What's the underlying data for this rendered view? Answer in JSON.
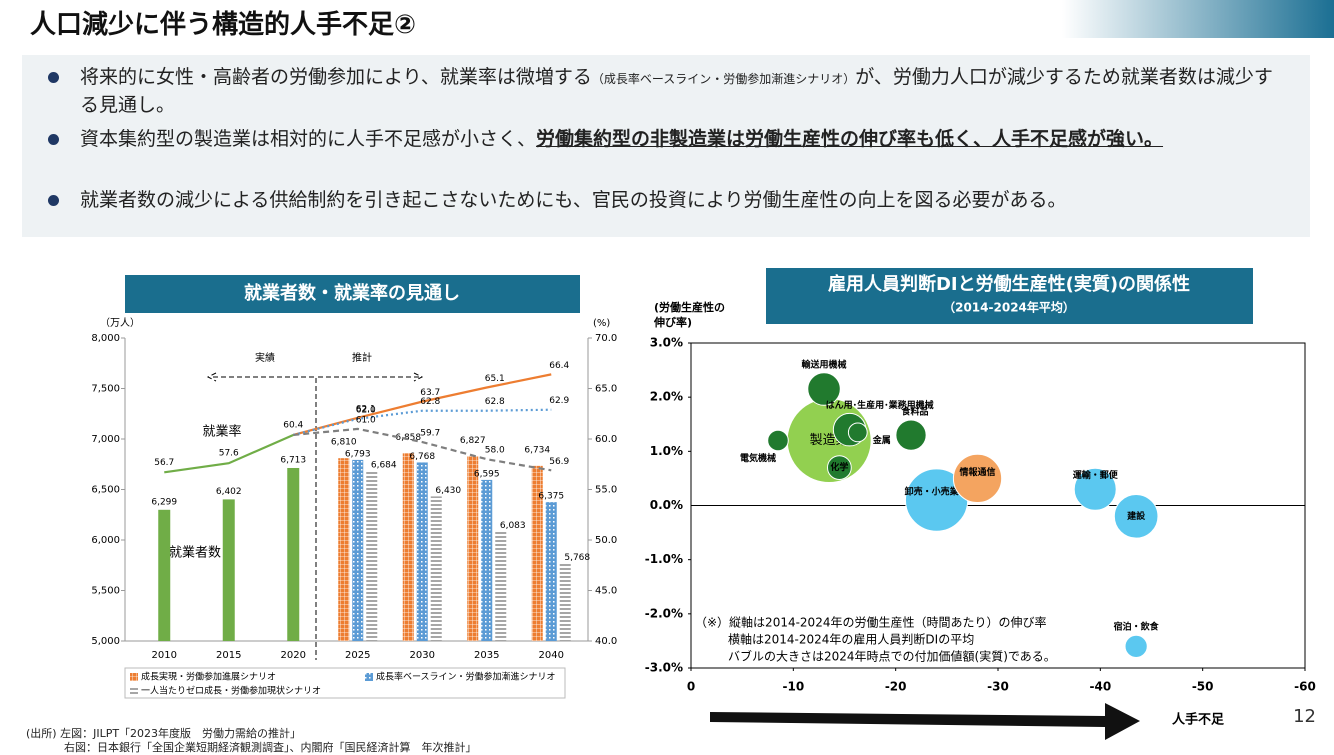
{
  "header": {
    "title": "人口減少に伴う構造的人手不足②",
    "page": "12"
  },
  "bullets": [
    [
      "将来的に女性・高齢者の労働参加により、就業率は微増する",
      "（成長率ベースライン・労働参加漸進シナリオ）",
      "が、労働力人口が減少するため就業者数は減少する見通し。"
    ],
    [
      "資本集約型の製造業は相対的に人手不足感が小さく、",
      "労働集約型の非製造業は労働生産性の伸び率も低く、人手不足感が強い。"
    ],
    [
      "就業者数の減少による供給制約を引き起こさないためにも、官民の投資により労働生産性の向上を図る必要がある。"
    ]
  ],
  "source": [
    "(出所) 左図：JILPT「2023年度版　労働力需給の推計」",
    "右図：日本銀行「全国企業短期経済観測調査」、内閣府「国民経済計算　年次推計」"
  ],
  "chart_data": [
    {
      "type": "bar",
      "title": "就業者数・就業率の見通し",
      "ylabel": "（万人）",
      "y2label": "(%)",
      "categories": [
        "2010",
        "2015",
        "2020",
        "2025",
        "2030",
        "2035",
        "2040"
      ],
      "ylim": [
        5000,
        8000
      ],
      "yticks": [
        {
          "value": 5000,
          "label": "5,000"
        },
        {
          "value": 5500,
          "label": "5,500"
        },
        {
          "value": 6000,
          "label": "6,000"
        },
        {
          "value": 6500,
          "label": "6,500"
        },
        {
          "value": 7000,
          "label": "7,000"
        },
        {
          "value": 7500,
          "label": "7,500"
        },
        {
          "value": 8000,
          "label": "8,000"
        }
      ],
      "y2lim": [
        40,
        70
      ],
      "y2ticks": [
        {
          "value": 40,
          "label": "40.0"
        },
        {
          "value": 45,
          "label": "45.0"
        },
        {
          "value": 50,
          "label": "50.0"
        },
        {
          "value": 55,
          "label": "55.0"
        },
        {
          "value": 60,
          "label": "60.0"
        },
        {
          "value": 65,
          "label": "65.0"
        },
        {
          "value": 70,
          "label": "70.0"
        }
      ],
      "annotations": [
        "実績",
        "推計",
        "就業率",
        "就業者数"
      ],
      "series": [
        {
          "name": "就業者数",
          "color": "#70ad47",
          "pattern": "solid",
          "values": [
            6299,
            6402,
            6713,
            null,
            null,
            null,
            null
          ],
          "value_labels": [
            "6,299",
            "6,402",
            "6,713",
            null,
            null,
            null,
            null
          ]
        },
        {
          "name": "成長実現・労働参加進展シナリオ",
          "color": "#ed7d31",
          "pattern": "crosshatch",
          "line_style": "solid",
          "values": [
            null,
            null,
            null,
            6810,
            6858,
            6827,
            6734
          ],
          "value_labels": [
            null,
            null,
            null,
            "6,810",
            "6,858",
            "6,827",
            "6,734"
          ],
          "rates": [
            null,
            null,
            null,
            62.1,
            63.7,
            65.1,
            66.4
          ],
          "rate_labels": [
            null,
            null,
            null,
            "62.1",
            "63.7",
            "65.1",
            "66.4"
          ]
        },
        {
          "name": "成長率ベースライン・労働参加漸進シナリオ",
          "color": "#5b9bd5",
          "pattern": "dots",
          "line_style": "dotted",
          "values": [
            null,
            null,
            null,
            6793,
            6768,
            6595,
            6375
          ],
          "value_labels": [
            null,
            null,
            null,
            "6,793",
            "6,768",
            "6,595",
            "6,375"
          ],
          "rates": [
            null,
            null,
            null,
            62.0,
            62.8,
            62.8,
            62.9
          ],
          "rate_labels": [
            null,
            null,
            null,
            "62.0",
            "62.8",
            "62.8",
            "62.9"
          ]
        },
        {
          "name": "一人当たりゼロ成長・労働参加現状シナリオ",
          "color": "#7f7f7f",
          "pattern": "horizontal",
          "line_style": "dashed",
          "values": [
            null,
            null,
            null,
            6684,
            6430,
            6083,
            5768
          ],
          "value_labels": [
            null,
            null,
            null,
            "6,684",
            "6,430",
            "6,083",
            "5,768"
          ],
          "rates": [
            null,
            null,
            null,
            61.0,
            59.7,
            58.0,
            56.9
          ],
          "rate_labels": [
            null,
            null,
            null,
            "61.0",
            "59.7",
            "58.0",
            "56.9"
          ]
        },
        {
          "name": "就業率",
          "color": "#70ad47",
          "axis": "y2",
          "line_style": "solid",
          "values": [
            56.7,
            57.6,
            60.4,
            null,
            null,
            null,
            null
          ]
        }
      ]
    },
    {
      "type": "bubble",
      "title": "雇用人員判断DIと労働生産性(実質)の関係性",
      "subtitle": "（2014-2024年平均）",
      "ylabel_lines": [
        "(労働生産性の",
        "伸び率)"
      ],
      "xlabel": "人手不足",
      "xlim": [
        0,
        -60
      ],
      "xticks": [
        0,
        -10,
        -20,
        -30,
        -40,
        -50,
        -60
      ],
      "ylim": [
        -3,
        3
      ],
      "yticks": [
        {
          "value": -3,
          "label": "-3.0%"
        },
        {
          "value": -2,
          "label": "-2.0%"
        },
        {
          "value": -1,
          "label": "-1.0%"
        },
        {
          "value": 0,
          "label": "0.0%"
        },
        {
          "value": 1,
          "label": "1.0%"
        },
        {
          "value": 2,
          "label": "2.0%"
        },
        {
          "value": 3,
          "label": "3.0%"
        }
      ],
      "notes": [
        "（※）縦軸は2014-2024年の労働生産性（時間あたり）の伸び率",
        "横軸は2014-2024年の雇用人員判断DIの平均",
        "バブルの大きさは2024年時点での付加価値額(実質)である。"
      ],
      "points": [
        {
          "label": "製造業",
          "x": -13.5,
          "y": 1.2,
          "size": 100,
          "color": "#92d050"
        },
        {
          "label": "輸送用機械",
          "x": -13,
          "y": 2.15,
          "size": 15,
          "color": "#217a2e"
        },
        {
          "label": "はん用･生産用･業務用機械",
          "x": -15.5,
          "y": 1.4,
          "size": 15,
          "color": "#217a2e"
        },
        {
          "label": "食料品",
          "x": -21.5,
          "y": 1.3,
          "size": 13,
          "color": "#217a2e"
        },
        {
          "label": "電気機械",
          "x": -8.5,
          "y": 1.2,
          "size": 6,
          "color": "#217a2e"
        },
        {
          "label": "金属",
          "x": -16.3,
          "y": 1.35,
          "size": 5,
          "color": "#217a2e"
        },
        {
          "label": "化学",
          "x": -14.5,
          "y": 0.7,
          "size": 8,
          "color": "#217a2e"
        },
        {
          "label": "卸売・小売業",
          "x": -24,
          "y": 0.1,
          "size": 55,
          "color": "#5bc8f0"
        },
        {
          "label": "情報通信",
          "x": -28,
          "y": 0.5,
          "size": 33,
          "color": "#f4a460"
        },
        {
          "label": "運輸・郵便",
          "x": -39.5,
          "y": 0.3,
          "size": 25,
          "color": "#5bc8f0"
        },
        {
          "label": "建設",
          "x": -43.5,
          "y": -0.2,
          "size": 27,
          "color": "#5bc8f0"
        },
        {
          "label": "宿泊・飲食",
          "x": -43.5,
          "y": -2.6,
          "size": 7,
          "color": "#5bc8f0"
        }
      ]
    }
  ]
}
